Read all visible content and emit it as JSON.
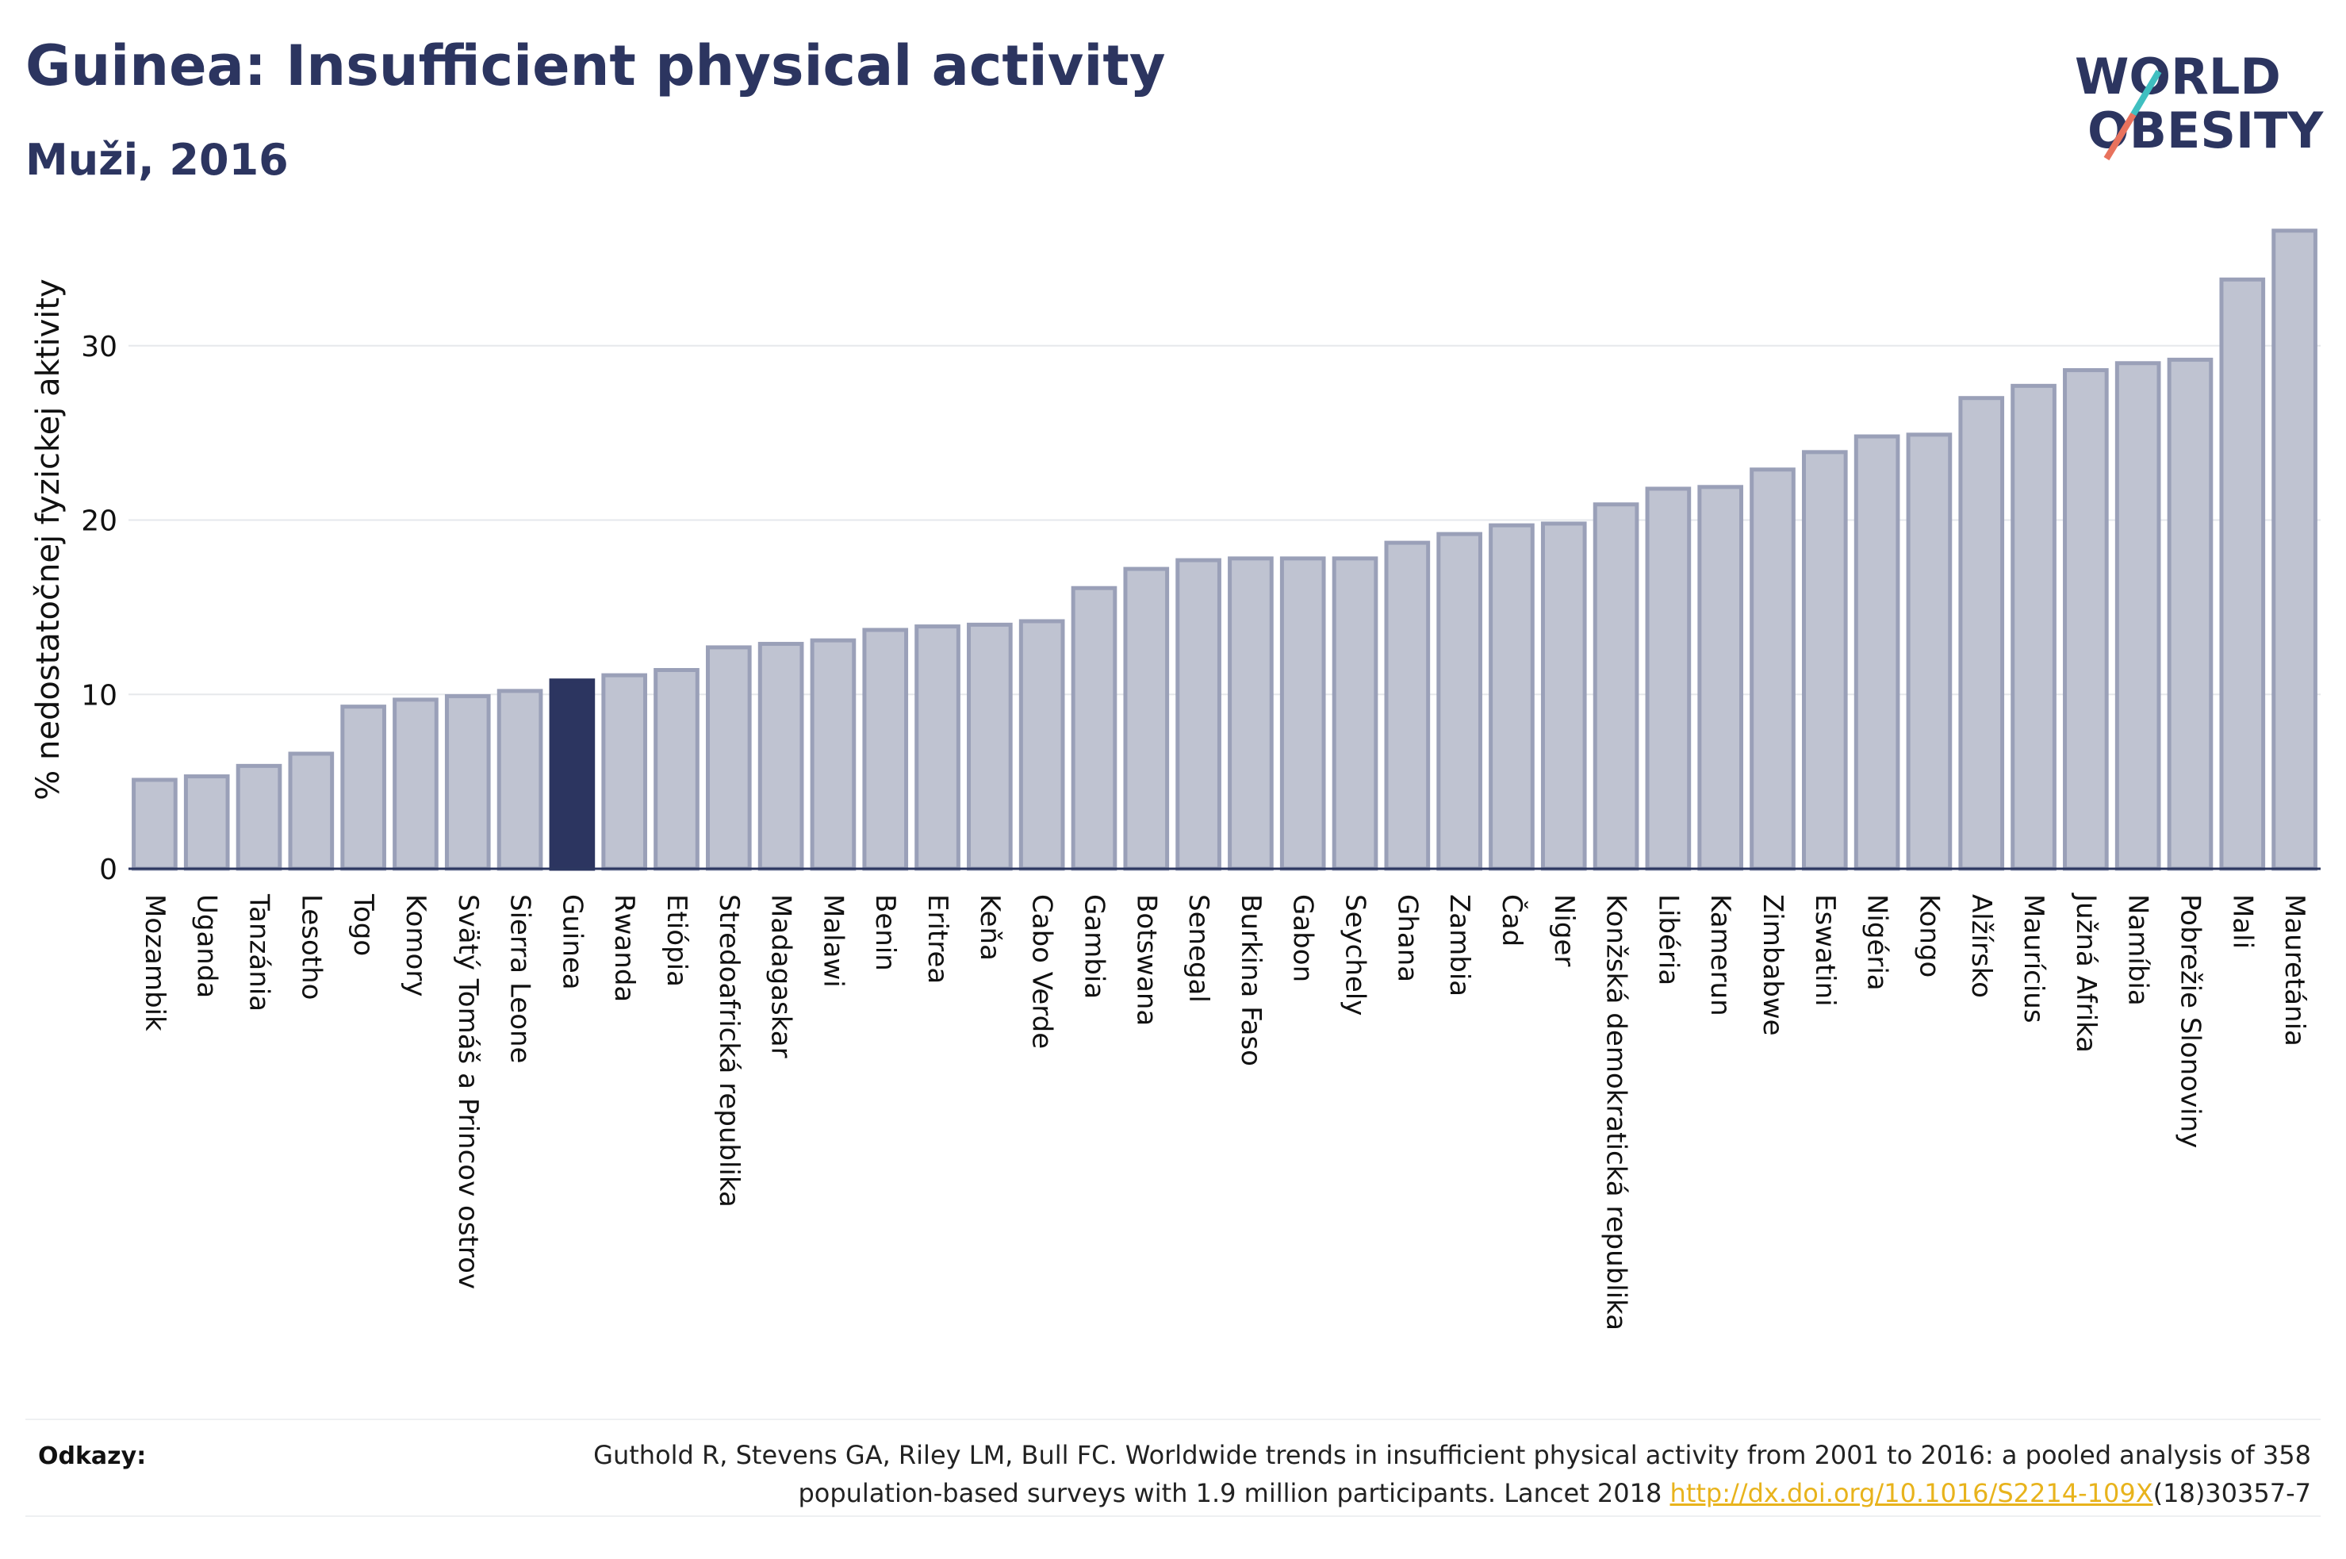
{
  "header": {
    "title": "Guinea: Insufficient physical activity",
    "subtitle": "Muži, 2016"
  },
  "logo": {
    "line1": "WORLD",
    "line2": "OBESITY"
  },
  "chart_data": {
    "type": "bar",
    "ylabel": "% nedostatočnej fyzickej aktivity",
    "ylim": [
      0,
      38
    ],
    "yticks": [
      0,
      10,
      20,
      30
    ],
    "grid": true,
    "highlight": "Guinea",
    "colors": {
      "bar": "#bfc3d1",
      "bar_border": "#9aa0b8",
      "highlight": "#2c3560",
      "grid": "#e6e8ec",
      "axis": "#2c3760"
    },
    "categories": [
      "Mozambik",
      "Uganda",
      "Tanzánia",
      "Lesotho",
      "Togo",
      "Komory",
      "Svätý Tomáš a Princov ostrov",
      "Sierra Leone",
      "Guinea",
      "Rwanda",
      "Etiópia",
      "Stredoafrická republika",
      "Madagaskar",
      "Malawi",
      "Benin",
      "Eritrea",
      "Keňa",
      "Cabo Verde",
      "Gambia",
      "Botswana",
      "Senegal",
      "Burkina Faso",
      "Gabon",
      "Seychely",
      "Ghana",
      "Zambia",
      "Čad",
      "Niger",
      "Konžská demokratická republika",
      "Libéria",
      "Kamerun",
      "Zimbabwe",
      "Eswatini",
      "Nigéria",
      "Kongo",
      "Alžírsko",
      "Maurícius",
      "Južná Afrika",
      "Namíbia",
      "Pobrežie Slonoviny",
      "Mali",
      "Mauretánia"
    ],
    "values": [
      5.1,
      5.3,
      5.9,
      6.6,
      9.3,
      9.7,
      9.9,
      10.2,
      10.8,
      11.1,
      11.4,
      12.7,
      12.9,
      13.1,
      13.7,
      13.9,
      14.0,
      14.2,
      16.1,
      17.2,
      17.7,
      17.8,
      17.8,
      17.8,
      18.7,
      19.2,
      19.7,
      19.8,
      20.9,
      21.8,
      21.9,
      22.9,
      23.9,
      24.8,
      24.9,
      27.0,
      27.7,
      28.6,
      29.0,
      29.2,
      33.8,
      36.6
    ]
  },
  "references": {
    "label": "Odkazy:",
    "text_line1": "Guthold R, Stevens GA, Riley LM, Bull FC. Worldwide trends in insufficient physical activity from 2001 to 2016: a pooled analysis of 358",
    "text_line2_prefix": "population-based surveys with 1.9 million participants. Lancet 2018 ",
    "link_text": "http://dx.doi.org/10.1016/S2214-109X",
    "text_line2_suffix": "(18)30357-7"
  }
}
